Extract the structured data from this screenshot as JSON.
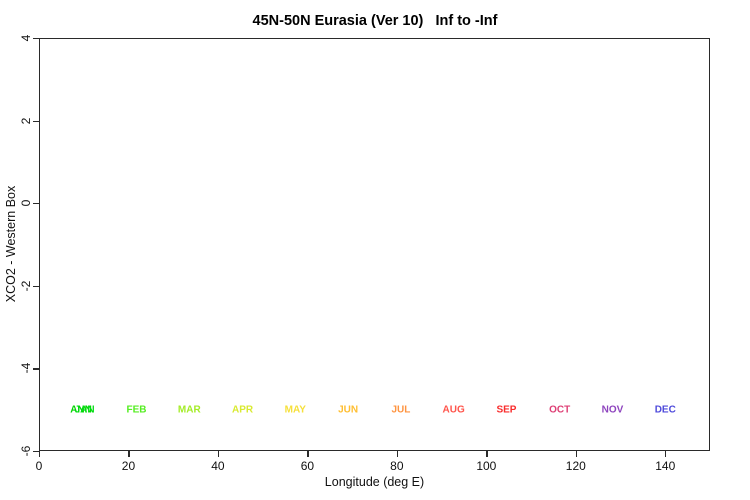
{
  "chart_data": {
    "type": "scatter",
    "title": "45N-50N Eurasia (Ver 10)   Inf to -Inf",
    "xlabel": "Longitude (deg E)",
    "ylabel": "XCO2 - Western Box",
    "xlim": [
      0,
      150
    ],
    "ylim": [
      -6,
      4
    ],
    "x_ticks": [
      0,
      20,
      40,
      60,
      80,
      100,
      120,
      140
    ],
    "y_ticks": [
      4,
      2,
      0,
      -2,
      -4,
      -6
    ],
    "grid": false,
    "frame": true,
    "legend": "none",
    "series": [],
    "annotations": [
      {
        "label": "ANN",
        "x": 9.4,
        "y": -5,
        "color": "#00d400"
      },
      {
        "label": "JAN",
        "x": 10.2,
        "y": -5,
        "color": "#00dd11"
      },
      {
        "label": "FEB",
        "x": 21.8,
        "y": -5,
        "color": "#55ee22"
      },
      {
        "label": "MAR",
        "x": 33.6,
        "y": -5,
        "color": "#a3ec25"
      },
      {
        "label": "APR",
        "x": 45.5,
        "y": -5,
        "color": "#d9ea31"
      },
      {
        "label": "MAY",
        "x": 57.3,
        "y": -5,
        "color": "#f6e03a"
      },
      {
        "label": "JUN",
        "x": 69.1,
        "y": -5,
        "color": "#ffbe30"
      },
      {
        "label": "JUL",
        "x": 80.9,
        "y": -5,
        "color": "#ff9440"
      },
      {
        "label": "AUG",
        "x": 92.7,
        "y": -5,
        "color": "#ff544b"
      },
      {
        "label": "SEP",
        "x": 104.5,
        "y": -5,
        "color": "#f92b2b"
      },
      {
        "label": "OCT",
        "x": 116.4,
        "y": -5,
        "color": "#de3f75"
      },
      {
        "label": "NOV",
        "x": 128.2,
        "y": -5,
        "color": "#8e44be"
      },
      {
        "label": "DEC",
        "x": 140.0,
        "y": -5,
        "color": "#4e4adb"
      }
    ]
  }
}
